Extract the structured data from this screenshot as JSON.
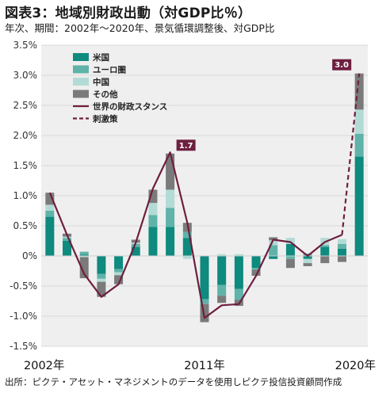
{
  "title": "図表3：地域別財政出動（対GDP比％）",
  "subtitle": "年次、期間：2002年～2020年、景気循環調整後、対GDP比",
  "source": "出所：ピクテ・アセット・マネジメントのデータを使用しピクテ投信投資顧問作成",
  "colors": {
    "us": "#0e8a7e",
    "euro": "#5fb3a9",
    "china": "#b3dbd5",
    "other": "#7a7a7a",
    "line": "#6e1f3f",
    "grid": "#d9d9d9",
    "bg": "#efefef"
  },
  "chart_data": {
    "type": "bar",
    "stacked": true,
    "years": [
      2002,
      2003,
      2004,
      2005,
      2006,
      2007,
      2008,
      2009,
      2010,
      2011,
      2012,
      2013,
      2014,
      2015,
      2016,
      2017,
      2018,
      2019,
      2020
    ],
    "x_tick_labels": [
      {
        "year": 2002,
        "label": "2002年"
      },
      {
        "year": 2011,
        "label": "2011年"
      },
      {
        "year": 2020,
        "label": "2020年"
      }
    ],
    "ylim": [
      -1.5,
      3.5
    ],
    "yticks": [
      -1.5,
      -1.0,
      -0.5,
      0,
      0.5,
      1.0,
      1.5,
      2.0,
      2.5,
      3.0,
      3.5
    ],
    "ytick_labels": [
      "-1.5%",
      "-1.0%",
      "-0.5%",
      "0%",
      "0.5%",
      "1.0%",
      "1.5%",
      "2.0%",
      "2.5%",
      "3.0%",
      "3.5%"
    ],
    "grid": true,
    "legend_position": "top-left",
    "series": [
      {
        "key": "us",
        "name": "米国",
        "values": [
          0.65,
          0.25,
          0.02,
          -0.3,
          -0.22,
          0.15,
          0.48,
          0.48,
          0.3,
          -0.72,
          -0.48,
          -0.55,
          -0.2,
          -0.05,
          0.2,
          -0.05,
          0.15,
          0.12,
          1.65
        ]
      },
      {
        "key": "euro",
        "name": "ユーロ圏",
        "values": [
          0.1,
          0.05,
          0.05,
          -0.08,
          -0.05,
          0.05,
          0.2,
          0.32,
          0.1,
          -0.08,
          -0.18,
          -0.18,
          -0.03,
          0.18,
          -0.05,
          0.04,
          0.03,
          0.08,
          0.38
        ]
      },
      {
        "key": "china",
        "name": "中国",
        "values": [
          0.1,
          0.02,
          -0.02,
          -0.05,
          -0.05,
          0.02,
          0.2,
          0.3,
          -0.05,
          0.0,
          0.03,
          0.03,
          0.0,
          0.08,
          0.1,
          -0.07,
          0.12,
          0.08,
          0.4
        ]
      },
      {
        "key": "other",
        "name": "その他",
        "values": [
          0.2,
          0.05,
          -0.35,
          -0.25,
          -0.15,
          0.05,
          0.22,
          0.6,
          0.15,
          -0.3,
          -0.12,
          -0.1,
          -0.1,
          0.05,
          -0.15,
          -0.05,
          -0.12,
          -0.1,
          0.6
        ]
      }
    ],
    "line_series": {
      "name": "世界の財政スタンス",
      "years": [
        2002,
        2003,
        2004,
        2005,
        2006,
        2007,
        2008,
        2009,
        2010,
        2011,
        2012,
        2013,
        2014,
        2015,
        2016,
        2017,
        2018,
        2019
      ],
      "values": [
        1.05,
        0.35,
        -0.3,
        -0.68,
        -0.47,
        0.22,
        1.12,
        1.72,
        0.55,
        -1.03,
        -0.82,
        -0.8,
        -0.33,
        0.27,
        0.23,
        0.0,
        0.23,
        0.35
      ]
    },
    "stimulus_series": {
      "name": "刺激策",
      "years": [
        2019,
        2020
      ],
      "values": [
        0.35,
        3.03
      ]
    },
    "callouts": [
      {
        "year": 2009,
        "value": 1.72,
        "label": "1.7"
      },
      {
        "year": 2020,
        "value": 3.03,
        "label": "3.0"
      }
    ]
  }
}
